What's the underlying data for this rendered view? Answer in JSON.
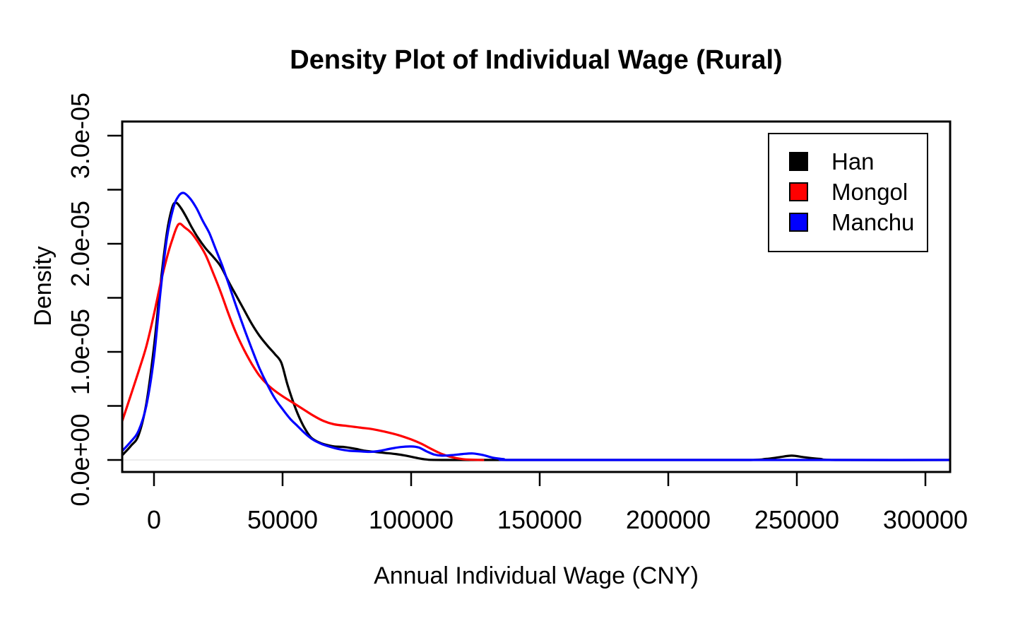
{
  "title": "Density Plot of Individual Wage (Rural)",
  "x_axis": {
    "label": "Annual Individual Wage (CNY)",
    "ticks": [
      {
        "value": 0,
        "label": "0"
      },
      {
        "value": 50000,
        "label": "50000"
      },
      {
        "value": 100000,
        "label": "100000"
      },
      {
        "value": 150000,
        "label": "150000"
      },
      {
        "value": 200000,
        "label": "200000"
      },
      {
        "value": 250000,
        "label": "250000"
      },
      {
        "value": 300000,
        "label": "300000"
      }
    ]
  },
  "y_axis": {
    "label": "Density",
    "ticks": [
      {
        "value": 0,
        "label": "0.0e+00"
      },
      {
        "value": 5e-06,
        "label": ""
      },
      {
        "value": 1e-05,
        "label": "1.0e-05"
      },
      {
        "value": 1.5e-05,
        "label": ""
      },
      {
        "value": 2e-05,
        "label": "2.0e-05"
      },
      {
        "value": 2.5e-05,
        "label": ""
      },
      {
        "value": 3e-05,
        "label": "3.0e-05"
      }
    ]
  },
  "legend": {
    "position": "top-right",
    "items": [
      {
        "label": "Han",
        "color": "#000000"
      },
      {
        "label": "Mongol",
        "color": "#ff0000"
      },
      {
        "label": "Manchu",
        "color": "#0000ff"
      }
    ]
  },
  "chart_data": {
    "type": "line",
    "subtype": "kernel-density",
    "title": "Density Plot of Individual Wage (Rural)",
    "xlabel": "Annual Individual Wage (CNY)",
    "ylabel": "Density",
    "xlim": [
      -12363,
      309615
    ],
    "ylim": [
      -1.11e-06,
      3.131e-05
    ],
    "grid": false,
    "zero_line_color": "#ececec",
    "frame_color": "#000000",
    "legend_position": "top-right",
    "series": [
      {
        "name": "Han",
        "color": "#000000",
        "peak": {
          "x": 8500,
          "y": 2.38e-05
        },
        "points": [
          [
            -12500,
            4e-07
          ],
          [
            -9000,
            1.3e-06
          ],
          [
            -6000,
            2.3e-06
          ],
          [
            -3000,
            5.2e-06
          ],
          [
            0,
            1.05e-05
          ],
          [
            2500,
            1.62e-05
          ],
          [
            5000,
            2.1e-05
          ],
          [
            7000,
            2.33e-05
          ],
          [
            8500,
            2.38e-05
          ],
          [
            10500,
            2.33e-05
          ],
          [
            12500,
            2.25e-05
          ],
          [
            14500,
            2.16e-05
          ],
          [
            17000,
            2.06e-05
          ],
          [
            20000,
            1.96e-05
          ],
          [
            23000,
            1.88e-05
          ],
          [
            26000,
            1.79e-05
          ],
          [
            29000,
            1.65e-05
          ],
          [
            32000,
            1.52e-05
          ],
          [
            35000,
            1.39e-05
          ],
          [
            38000,
            1.26e-05
          ],
          [
            41000,
            1.15e-05
          ],
          [
            44000,
            1.06e-05
          ],
          [
            47000,
            9.8e-06
          ],
          [
            49500,
            9e-06
          ],
          [
            52000,
            6.9e-06
          ],
          [
            55000,
            4.8e-06
          ],
          [
            58000,
            3.2e-06
          ],
          [
            61000,
            2.1e-06
          ],
          [
            64000,
            1.65e-06
          ],
          [
            67000,
            1.4e-06
          ],
          [
            70000,
            1.25e-06
          ],
          [
            74000,
            1.2e-06
          ],
          [
            78000,
            1.05e-06
          ],
          [
            82000,
            8.5e-07
          ],
          [
            86000,
            7.5e-07
          ],
          [
            90000,
            6.5e-07
          ],
          [
            94000,
            5.5e-07
          ],
          [
            98000,
            4e-07
          ],
          [
            102000,
            2e-07
          ],
          [
            106000,
            5e-08
          ],
          [
            112000,
            0
          ],
          [
            150000,
            0
          ],
          [
            200000,
            0
          ],
          [
            231000,
            0
          ],
          [
            238000,
            1e-07
          ],
          [
            243000,
            2.5e-07
          ],
          [
            248000,
            4e-07
          ],
          [
            253000,
            2.5e-07
          ],
          [
            259000,
            1e-07
          ],
          [
            266000,
            0
          ],
          [
            310000,
            0
          ]
        ]
      },
      {
        "name": "Mongol",
        "color": "#ff0000",
        "peak": {
          "x": 9500,
          "y": 2.18e-05
        },
        "points": [
          [
            -12500,
            3.5e-06
          ],
          [
            -9000,
            6e-06
          ],
          [
            -6000,
            8.2e-06
          ],
          [
            -3000,
            1.05e-05
          ],
          [
            0,
            1.35e-05
          ],
          [
            2500,
            1.63e-05
          ],
          [
            5000,
            1.87e-05
          ],
          [
            7000,
            2.03e-05
          ],
          [
            9500,
            2.18e-05
          ],
          [
            12000,
            2.15e-05
          ],
          [
            14500,
            2.1e-05
          ],
          [
            17000,
            2.02e-05
          ],
          [
            20000,
            1.9e-05
          ],
          [
            23000,
            1.73e-05
          ],
          [
            26000,
            1.55e-05
          ],
          [
            29000,
            1.35e-05
          ],
          [
            32000,
            1.17e-05
          ],
          [
            35000,
            1.02e-05
          ],
          [
            38000,
            8.9e-06
          ],
          [
            41000,
            7.8e-06
          ],
          [
            44000,
            7e-06
          ],
          [
            47000,
            6.4e-06
          ],
          [
            50000,
            5.9e-06
          ],
          [
            54000,
            5.3e-06
          ],
          [
            58000,
            4.7e-06
          ],
          [
            62000,
            4.1e-06
          ],
          [
            66000,
            3.6e-06
          ],
          [
            70000,
            3.3e-06
          ],
          [
            75000,
            3.15e-06
          ],
          [
            80000,
            3e-06
          ],
          [
            85000,
            2.85e-06
          ],
          [
            90000,
            2.6e-06
          ],
          [
            95000,
            2.3e-06
          ],
          [
            100000,
            1.9e-06
          ],
          [
            104000,
            1.5e-06
          ],
          [
            108000,
            1e-06
          ],
          [
            112000,
            5.5e-07
          ],
          [
            116000,
            2.5e-07
          ],
          [
            120000,
            8e-08
          ],
          [
            124000,
            2e-08
          ],
          [
            128000,
            0
          ]
        ]
      },
      {
        "name": "Manchu",
        "color": "#0000ff",
        "peak": {
          "x": 11500,
          "y": 2.47e-05
        },
        "points": [
          [
            -12500,
            8e-07
          ],
          [
            -9000,
            1.7e-06
          ],
          [
            -6000,
            2.7e-06
          ],
          [
            -3000,
            5e-06
          ],
          [
            0,
            9.5e-06
          ],
          [
            2500,
            1.55e-05
          ],
          [
            5000,
            2.05e-05
          ],
          [
            7500,
            2.33e-05
          ],
          [
            9500,
            2.44e-05
          ],
          [
            11500,
            2.47e-05
          ],
          [
            14000,
            2.42e-05
          ],
          [
            16500,
            2.33e-05
          ],
          [
            19000,
            2.21e-05
          ],
          [
            21500,
            2.1e-05
          ],
          [
            24000,
            1.95e-05
          ],
          [
            26500,
            1.8e-05
          ],
          [
            29000,
            1.63e-05
          ],
          [
            32000,
            1.42e-05
          ],
          [
            35000,
            1.22e-05
          ],
          [
            38000,
            1.03e-05
          ],
          [
            41000,
            8.5e-06
          ],
          [
            44000,
            7e-06
          ],
          [
            47000,
            5.7e-06
          ],
          [
            50000,
            4.7e-06
          ],
          [
            53000,
            3.8e-06
          ],
          [
            56000,
            3.1e-06
          ],
          [
            59000,
            2.4e-06
          ],
          [
            62000,
            1.85e-06
          ],
          [
            65000,
            1.5e-06
          ],
          [
            68000,
            1.25e-06
          ],
          [
            72000,
            1e-06
          ],
          [
            76000,
            8.5e-07
          ],
          [
            80000,
            8e-07
          ],
          [
            84000,
            7.5e-07
          ],
          [
            88000,
            8.5e-07
          ],
          [
            92000,
            1.05e-06
          ],
          [
            96000,
            1.2e-06
          ],
          [
            100000,
            1.25e-06
          ],
          [
            103000,
            1.15e-06
          ],
          [
            106000,
            8e-07
          ],
          [
            109000,
            5e-07
          ],
          [
            112000,
            4e-07
          ],
          [
            116000,
            4.5e-07
          ],
          [
            120000,
            5.5e-07
          ],
          [
            124000,
            6e-07
          ],
          [
            128000,
            4.5e-07
          ],
          [
            132000,
            2e-07
          ],
          [
            136000,
            8e-08
          ],
          [
            140000,
            0
          ],
          [
            200000,
            0
          ],
          [
            310000,
            0
          ]
        ]
      }
    ]
  }
}
